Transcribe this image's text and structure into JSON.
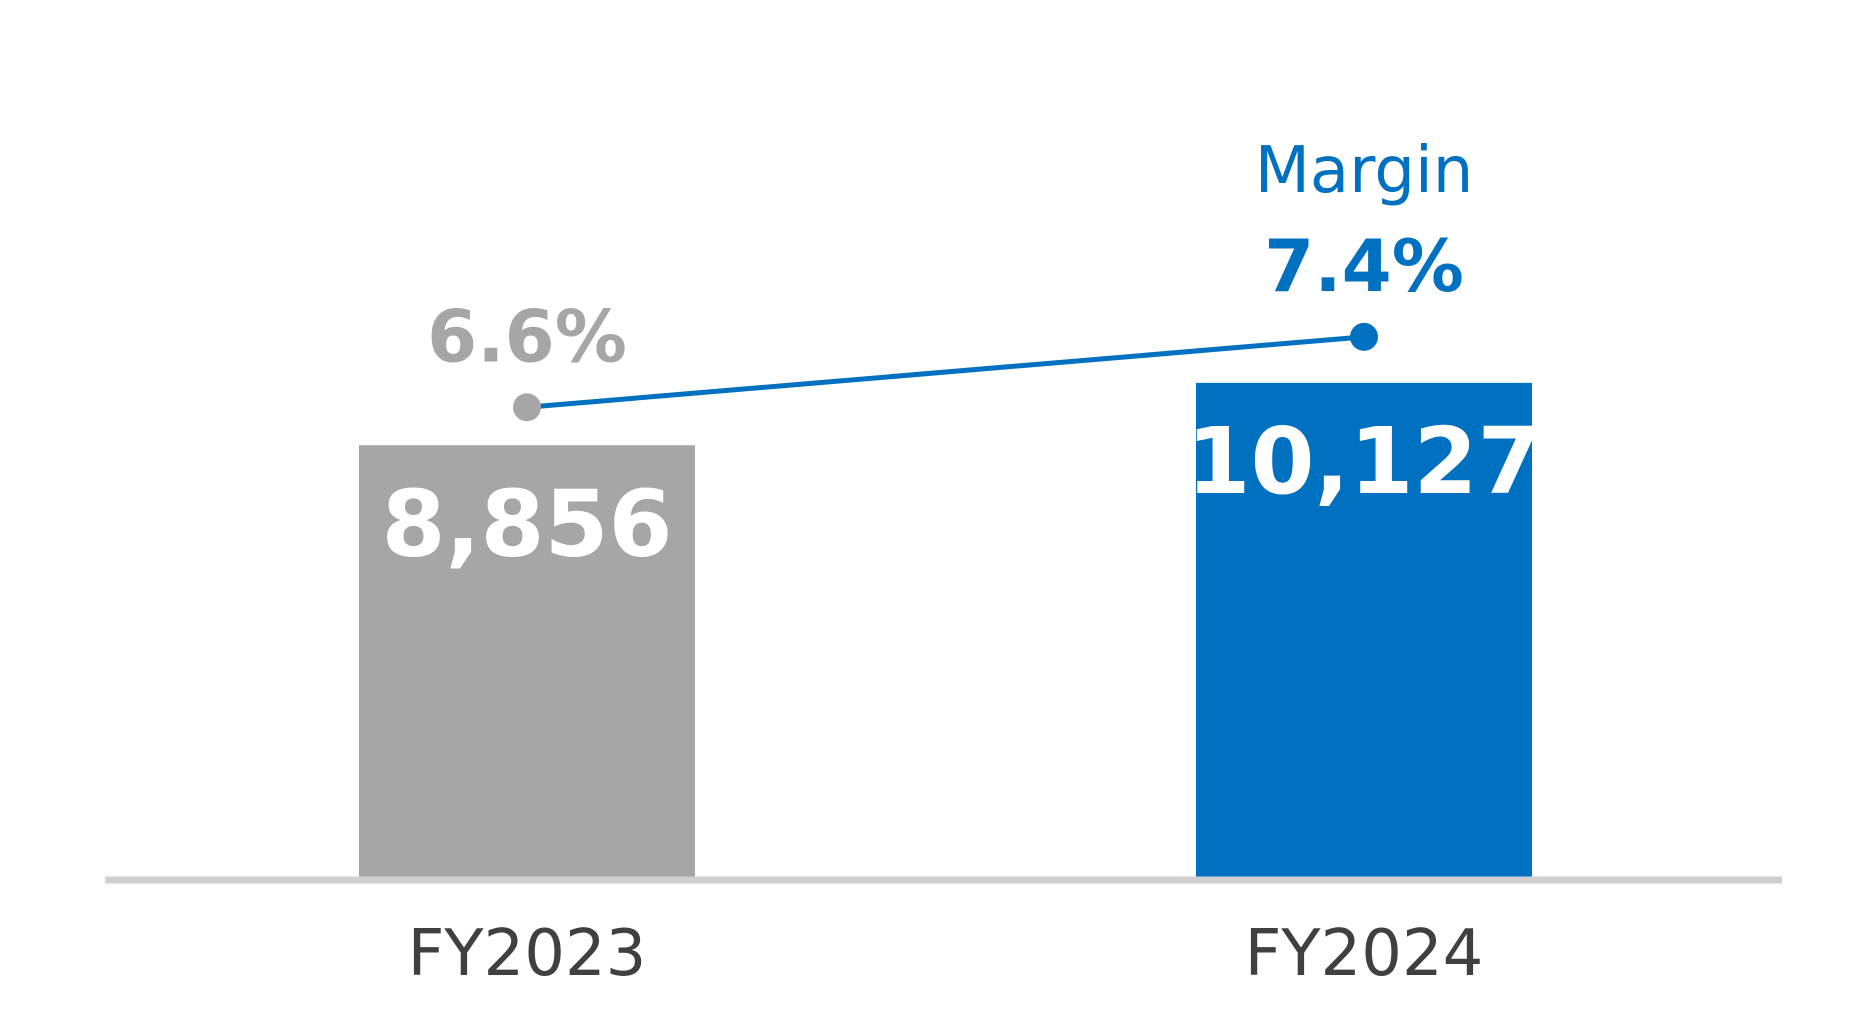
{
  "chart_data": {
    "type": "bar",
    "categories": [
      "FY2023",
      "FY2024"
    ],
    "values": [
      8856,
      10127
    ],
    "value_labels": [
      "8,856",
      "10,127"
    ],
    "bar_colors": [
      "#a6a6a6",
      "#0070c0"
    ],
    "ylim": [
      0,
      11000
    ],
    "grid": false,
    "line_series": {
      "name": "Margin",
      "values": [
        6.6,
        7.4
      ],
      "labels": [
        "6.6%",
        "7.4%"
      ],
      "unit": "%",
      "ylim": [
        0,
        8.5
      ],
      "point_colors": [
        "#a6a6a6",
        "#0070c0"
      ],
      "line_color": "#0070c0",
      "label_colors": [
        "#a6a6a6",
        "#0070c0"
      ]
    },
    "axis_color": "#d0d0d0"
  }
}
